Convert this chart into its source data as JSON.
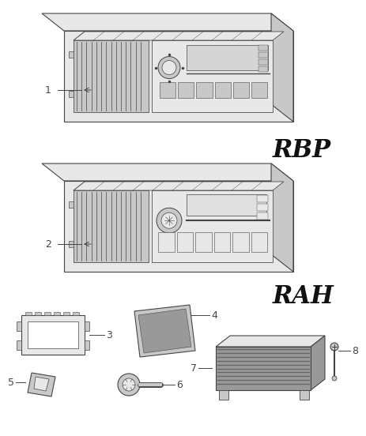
{
  "bg_color": "#ffffff",
  "lc": "#444444",
  "fill_white": "#ffffff",
  "fill_light": "#e8e8e8",
  "fill_mid": "#c8c8c8",
  "fill_dark": "#999999",
  "fill_vdark": "#666666",
  "fill_black": "#333333",
  "tag_RBP": "RBP",
  "tag_RAH": "RAH",
  "label1": "1",
  "label2": "2",
  "label3": "3",
  "label4": "4",
  "label5": "5",
  "label6": "6",
  "label7": "7",
  "label8": "8"
}
